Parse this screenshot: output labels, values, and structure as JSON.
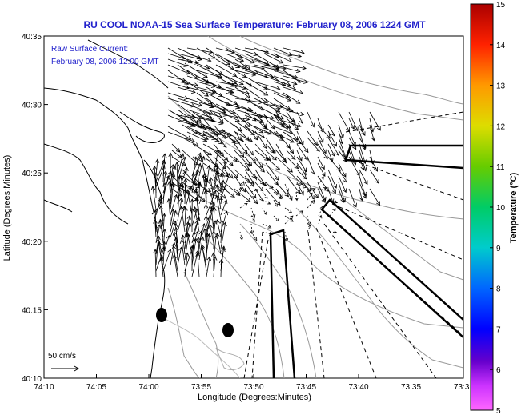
{
  "title": "RU COOL  NOAA-15  Sea Surface Temperature:  February 08, 2006 1224 GMT",
  "overlay": {
    "line1": "Raw Surface Current:",
    "line2": "February 08, 2006 12:00 GMT"
  },
  "axes": {
    "xlabel": "Longitude (Degrees:Minutes)",
    "ylabel": "Latitude (Degrees:Minutes)",
    "xticks": [
      "74:10",
      "74:05",
      "74:00",
      "73:55",
      "73:50",
      "73:45",
      "73:40",
      "73:35",
      "73:3"
    ],
    "yticks": [
      "40:35",
      "40:30",
      "40:25",
      "40:20",
      "40:15",
      "40:10"
    ]
  },
  "scale": {
    "label": "50 cm/s"
  },
  "colorbar": {
    "label": "Temperature (°C)",
    "ticks": [
      "15",
      "14",
      "13",
      "12",
      "11",
      "10",
      "9",
      "8",
      "7",
      "6",
      "5"
    ],
    "colors": [
      "#ff66ff",
      "#6600cc",
      "#0000ff",
      "#0088ff",
      "#00cccc",
      "#00cc66",
      "#66cc00",
      "#cccc00",
      "#ffcc00",
      "#ff6600",
      "#ff0000",
      "#aa0000"
    ]
  }
}
